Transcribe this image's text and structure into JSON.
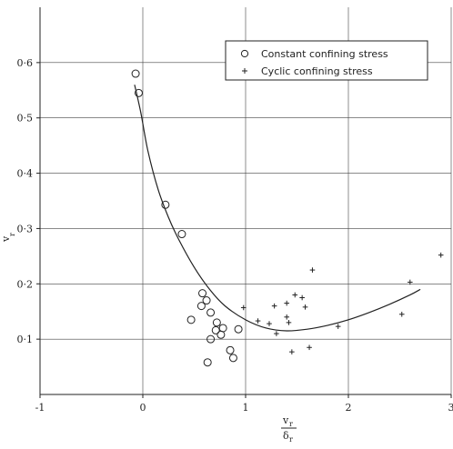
{
  "chart_data": {
    "type": "scatter",
    "xlabel_num": "v",
    "xlabel_num_sub": "r",
    "xlabel_den": "δ",
    "xlabel_den_sub": "r",
    "ylabel": "v",
    "ylabel_sub": "r",
    "xlim": [
      -1,
      3
    ],
    "ylim": [
      0,
      0.7
    ],
    "x_ticks": [
      -1,
      0,
      1,
      2,
      3
    ],
    "x_tick_labels": [
      "-1",
      "0",
      "1",
      "2",
      "3"
    ],
    "y_ticks": [
      0.1,
      0.2,
      0.3,
      0.4,
      0.5,
      0.6
    ],
    "y_tick_labels": [
      "0·1",
      "0·2",
      "0·3",
      "0·4",
      "0·5",
      "0·6"
    ],
    "grid": "horizontal at y ticks",
    "legend_position": "top-right",
    "series": [
      {
        "name": "Constant confining stress",
        "marker": "circle",
        "points": [
          [
            -0.07,
            0.58
          ],
          [
            -0.04,
            0.545
          ],
          [
            0.22,
            0.343
          ],
          [
            0.38,
            0.29
          ],
          [
            0.58,
            0.183
          ],
          [
            0.62,
            0.17
          ],
          [
            0.57,
            0.16
          ],
          [
            0.66,
            0.148
          ],
          [
            0.47,
            0.135
          ],
          [
            0.72,
            0.13
          ],
          [
            0.78,
            0.12
          ],
          [
            0.93,
            0.118
          ],
          [
            0.71,
            0.116
          ],
          [
            0.76,
            0.108
          ],
          [
            0.66,
            0.1
          ],
          [
            0.85,
            0.08
          ],
          [
            0.88,
            0.066
          ],
          [
            0.63,
            0.058
          ]
        ]
      },
      {
        "name": "Cyclic confining stress",
        "marker": "plus",
        "points": [
          [
            1.65,
            0.225
          ],
          [
            2.6,
            0.203
          ],
          [
            2.9,
            0.252
          ],
          [
            1.48,
            0.18
          ],
          [
            1.55,
            0.175
          ],
          [
            1.28,
            0.16
          ],
          [
            1.4,
            0.165
          ],
          [
            1.58,
            0.158
          ],
          [
            0.98,
            0.157
          ],
          [
            1.12,
            0.133
          ],
          [
            1.23,
            0.128
          ],
          [
            1.4,
            0.14
          ],
          [
            1.42,
            0.13
          ],
          [
            1.3,
            0.11
          ],
          [
            1.9,
            0.123
          ],
          [
            2.52,
            0.145
          ],
          [
            1.62,
            0.085
          ],
          [
            1.45,
            0.077
          ]
        ]
      }
    ],
    "fit_curve": {
      "points": [
        [
          -0.08,
          0.56
        ],
        [
          -0.02,
          0.51
        ],
        [
          0.05,
          0.44
        ],
        [
          0.15,
          0.37
        ],
        [
          0.25,
          0.32
        ],
        [
          0.35,
          0.28
        ],
        [
          0.5,
          0.23
        ],
        [
          0.65,
          0.19
        ],
        [
          0.8,
          0.16
        ],
        [
          1.0,
          0.135
        ],
        [
          1.2,
          0.12
        ],
        [
          1.4,
          0.115
        ],
        [
          1.6,
          0.118
        ],
        [
          1.8,
          0.125
        ],
        [
          2.0,
          0.135
        ],
        [
          2.2,
          0.148
        ],
        [
          2.4,
          0.163
        ],
        [
          2.6,
          0.18
        ],
        [
          2.7,
          0.19
        ]
      ]
    }
  }
}
